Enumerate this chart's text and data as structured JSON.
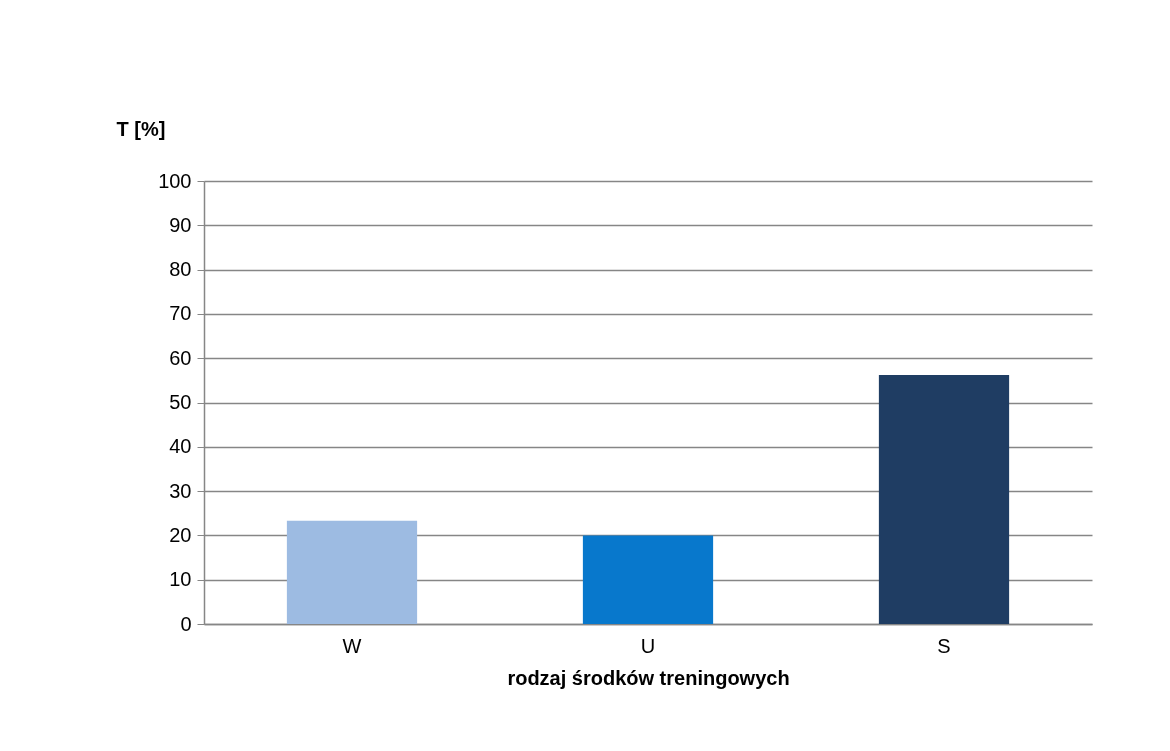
{
  "chart_data": {
    "type": "bar",
    "xlabel": "rodzaj środków treningowych",
    "ylabel": "T [%]",
    "categories": [
      "W",
      "U",
      "S"
    ],
    "values": [
      23.3,
      20,
      56.2
    ],
    "colors": [
      "#9dbbe2",
      "#0878cc",
      "#1f3d63"
    ],
    "ylim": [
      0,
      100
    ],
    "yticks": [
      0,
      10,
      20,
      30,
      40,
      50,
      60,
      70,
      80,
      90,
      100
    ],
    "grid": "y",
    "legend": false
  }
}
